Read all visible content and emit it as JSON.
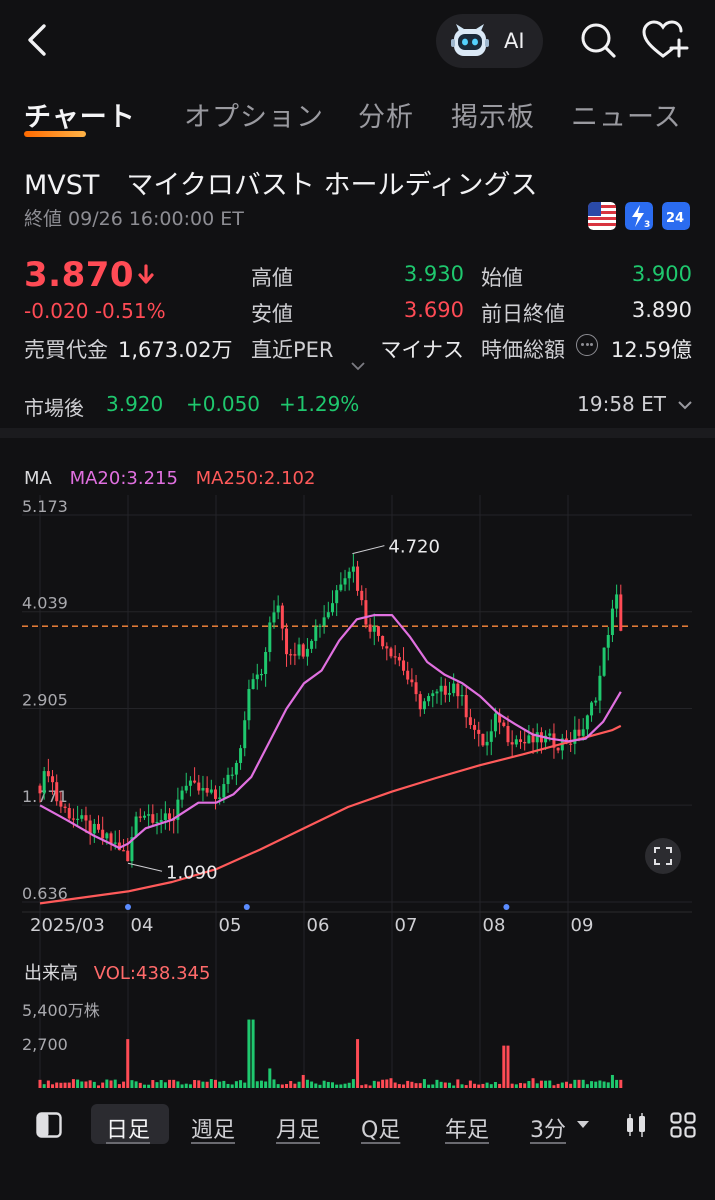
{
  "header": {
    "ai_label": "AI",
    "icons": [
      "back-arrow-icon",
      "ai-robot-icon",
      "search-icon",
      "favorite-add-icon"
    ]
  },
  "tabs": [
    {
      "label": "チャート",
      "active": true
    },
    {
      "label": "オプション",
      "active": false
    },
    {
      "label": "分析",
      "active": false
    },
    {
      "label": "掲示板",
      "active": false
    },
    {
      "label": "ニュース",
      "active": false
    }
  ],
  "stock": {
    "name": "MVST　マイクロバスト ホールディングス",
    "close_time": "終値 09/26 16:00:00 ET",
    "price": "3.870",
    "change": "-0.020 -0.51%",
    "turnover_label": "売買代金",
    "turnover_value": "1,673.02万",
    "high_label": "高値",
    "high_value": "3.930",
    "low_label": "安値",
    "low_value": "3.690",
    "per_label": "直近PER",
    "per_value": "マイナス",
    "open_label": "始値",
    "open_value": "3.900",
    "prev_close_label": "前日終値",
    "prev_close_value": "3.890",
    "mcap_label": "時価総額",
    "mcap_value": "12.59億",
    "badges": [
      "us-flag-icon",
      "lightning-3-icon",
      "24h-icon"
    ],
    "colors": {
      "down": "#ff4b55",
      "up": "#1fc86e"
    }
  },
  "after_hours": {
    "label": "市場後",
    "price": "3.920",
    "change": "+0.050",
    "pct": "+1.29%",
    "time": "19:58 ET"
  },
  "chart_legend": {
    "ma": "MA",
    "ma20": "MA20:3.215",
    "ma250": "MA250:2.102",
    "colors": {
      "ma20": "#e070e0",
      "ma250": "#ff5a5a",
      "ref_line": "#ff8a3d"
    }
  },
  "chart_data": {
    "type": "candlestick",
    "y_ticks": [
      "5.173",
      "4.039",
      "2.905",
      "1.771",
      "0.636"
    ],
    "ylim": [
      0.636,
      5.173
    ],
    "x_ticks": [
      "2025/03",
      "04",
      "05",
      "06",
      "07",
      "08",
      "09"
    ],
    "x_months": [
      "2025-03",
      "2025-04",
      "2025-05",
      "2025-06",
      "2025-07",
      "2025-08",
      "2025-09"
    ],
    "annotations": [
      {
        "label": "4.720",
        "month": 6.55,
        "price": 4.72,
        "kind": "high"
      },
      {
        "label": "1.090",
        "month": 4.0,
        "price": 1.09,
        "kind": "low"
      }
    ],
    "reference_line": 3.87,
    "ma20_path": [
      [
        3.0,
        1.77
      ],
      [
        3.3,
        1.6
      ],
      [
        3.6,
        1.42
      ],
      [
        3.9,
        1.27
      ],
      [
        4.0,
        1.32
      ],
      [
        4.2,
        1.5
      ],
      [
        4.5,
        1.6
      ],
      [
        4.8,
        1.8
      ],
      [
        5.0,
        1.8
      ],
      [
        5.2,
        1.9
      ],
      [
        5.4,
        2.1
      ],
      [
        5.6,
        2.5
      ],
      [
        5.8,
        2.9
      ],
      [
        6.0,
        3.2
      ],
      [
        6.2,
        3.35
      ],
      [
        6.4,
        3.7
      ],
      [
        6.6,
        3.95
      ],
      [
        6.8,
        4.0
      ],
      [
        7.0,
        4.0
      ],
      [
        7.2,
        3.75
      ],
      [
        7.4,
        3.45
      ],
      [
        7.6,
        3.3
      ],
      [
        7.8,
        3.2
      ],
      [
        8.0,
        3.05
      ],
      [
        8.2,
        2.85
      ],
      [
        8.4,
        2.72
      ],
      [
        8.6,
        2.6
      ],
      [
        8.8,
        2.55
      ],
      [
        9.0,
        2.52
      ],
      [
        9.2,
        2.55
      ],
      [
        9.4,
        2.75
      ],
      [
        9.6,
        3.1
      ]
    ],
    "ma250_path": [
      [
        3.0,
        0.62
      ],
      [
        3.5,
        0.69
      ],
      [
        4.0,
        0.76
      ],
      [
        4.5,
        0.87
      ],
      [
        5.0,
        1.02
      ],
      [
        5.5,
        1.25
      ],
      [
        6.0,
        1.5
      ],
      [
        6.5,
        1.75
      ],
      [
        7.0,
        1.93
      ],
      [
        7.5,
        2.09
      ],
      [
        8.0,
        2.24
      ],
      [
        8.5,
        2.37
      ],
      [
        9.0,
        2.51
      ],
      [
        9.5,
        2.65
      ],
      [
        9.6,
        2.7
      ]
    ],
    "price_path": [
      [
        3.0,
        2.0
      ],
      [
        3.1,
        2.2
      ],
      [
        3.2,
        1.8
      ],
      [
        3.3,
        1.7
      ],
      [
        3.5,
        1.55
      ],
      [
        3.7,
        1.4
      ],
      [
        3.9,
        1.28
      ],
      [
        4.0,
        1.1
      ],
      [
        4.1,
        1.7
      ],
      [
        4.3,
        1.65
      ],
      [
        4.5,
        1.55
      ],
      [
        4.6,
        2.0
      ],
      [
        4.8,
        1.95
      ],
      [
        5.0,
        1.85
      ],
      [
        5.1,
        2.0
      ],
      [
        5.25,
        2.3
      ],
      [
        5.4,
        3.35
      ],
      [
        5.5,
        3.2
      ],
      [
        5.6,
        3.8
      ],
      [
        5.7,
        4.2
      ],
      [
        5.8,
        3.6
      ],
      [
        6.0,
        3.6
      ],
      [
        6.1,
        3.8
      ],
      [
        6.3,
        4.1
      ],
      [
        6.45,
        4.5
      ],
      [
        6.55,
        4.6
      ],
      [
        6.7,
        3.95
      ],
      [
        6.9,
        3.7
      ],
      [
        7.1,
        3.45
      ],
      [
        7.3,
        2.95
      ],
      [
        7.5,
        3.05
      ],
      [
        7.7,
        3.2
      ],
      [
        7.9,
        2.75
      ],
      [
        8.0,
        2.5
      ],
      [
        8.1,
        2.5
      ],
      [
        8.2,
        2.85
      ],
      [
        8.3,
        2.6
      ],
      [
        8.5,
        2.5
      ],
      [
        8.7,
        2.55
      ],
      [
        8.9,
        2.5
      ],
      [
        9.05,
        2.55
      ],
      [
        9.2,
        2.7
      ],
      [
        9.35,
        3.2
      ],
      [
        9.45,
        3.8
      ],
      [
        9.55,
        4.2
      ],
      [
        9.6,
        3.87
      ]
    ],
    "volume": {
      "label": "出来高",
      "vol_label": "VOL:438.345",
      "y_ticks": [
        "5,400万株",
        "2,700"
      ],
      "ylim": [
        0,
        54
      ],
      "peaks": [
        [
          3.0,
          5
        ],
        [
          3.5,
          4
        ],
        [
          4.0,
          30
        ],
        [
          4.5,
          5
        ],
        [
          5.0,
          5
        ],
        [
          5.4,
          42
        ],
        [
          5.6,
          12
        ],
        [
          6.0,
          8
        ],
        [
          6.6,
          30
        ],
        [
          7.0,
          6
        ],
        [
          7.5,
          5
        ],
        [
          8.3,
          26
        ],
        [
          8.6,
          6
        ],
        [
          9.1,
          5
        ],
        [
          9.5,
          8
        ],
        [
          9.6,
          5
        ]
      ]
    }
  },
  "bottom_bar": {
    "periods": [
      {
        "label": "日足",
        "active": true
      },
      {
        "label": "週足",
        "active": false
      },
      {
        "label": "月足",
        "active": false
      },
      {
        "label": "Q足",
        "active": false
      },
      {
        "label": "年足",
        "active": false
      },
      {
        "label": "3分",
        "active": false
      }
    ],
    "icons": [
      "panel-toggle-icon",
      "candle-style-icon",
      "grid-icon"
    ]
  }
}
